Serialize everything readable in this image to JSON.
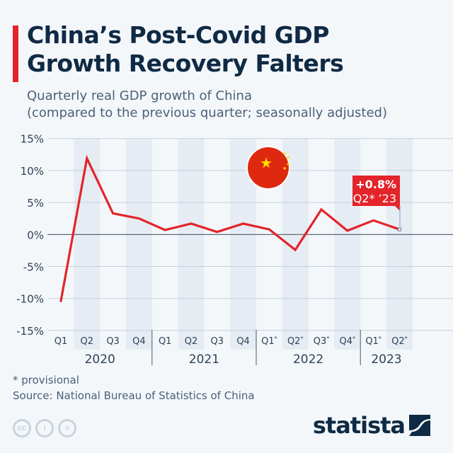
{
  "header": {
    "title_line1": "China’s Post-Covid GDP",
    "title_line2": "Growth Recovery Falters",
    "subtitle_line1": "Quarterly real GDP growth of China",
    "subtitle_line2": "(compared to the previous quarter; seasonally adjusted)"
  },
  "chart_data": {
    "type": "line",
    "title": "China’s Post-Covid GDP Growth Recovery Falters",
    "ylim": [
      -15,
      15
    ],
    "yticks": [
      "15%",
      "10%",
      "5%",
      "0%",
      "-5%",
      "-10%",
      "-15%"
    ],
    "categories": [
      "Q1",
      "Q2",
      "Q3",
      "Q4",
      "Q1",
      "Q2",
      "Q3",
      "Q4",
      "Q1*",
      "Q2*",
      "Q3*",
      "Q4*",
      "Q1*",
      "Q2*"
    ],
    "years": [
      {
        "label": "2020",
        "quarters": 4
      },
      {
        "label": "2021",
        "quarters": 4
      },
      {
        "label": "2022",
        "quarters": 4
      },
      {
        "label": "2023",
        "quarters": 2
      }
    ],
    "values": [
      -10.4,
      11.9,
      3.3,
      2.5,
      0.7,
      1.7,
      0.4,
      1.7,
      0.8,
      -2.4,
      3.9,
      0.6,
      2.2,
      0.8
    ],
    "line_color": "#e3242b",
    "grid": true,
    "annotation": {
      "value": "+0.8%",
      "label": "Q2* ’23"
    }
  },
  "footer": {
    "note": "* provisional",
    "source": "Source: National Bureau of Statistics of China",
    "brand": "statista",
    "license_icons": [
      "cc-icon",
      "by-icon",
      "nd-icon"
    ]
  }
}
